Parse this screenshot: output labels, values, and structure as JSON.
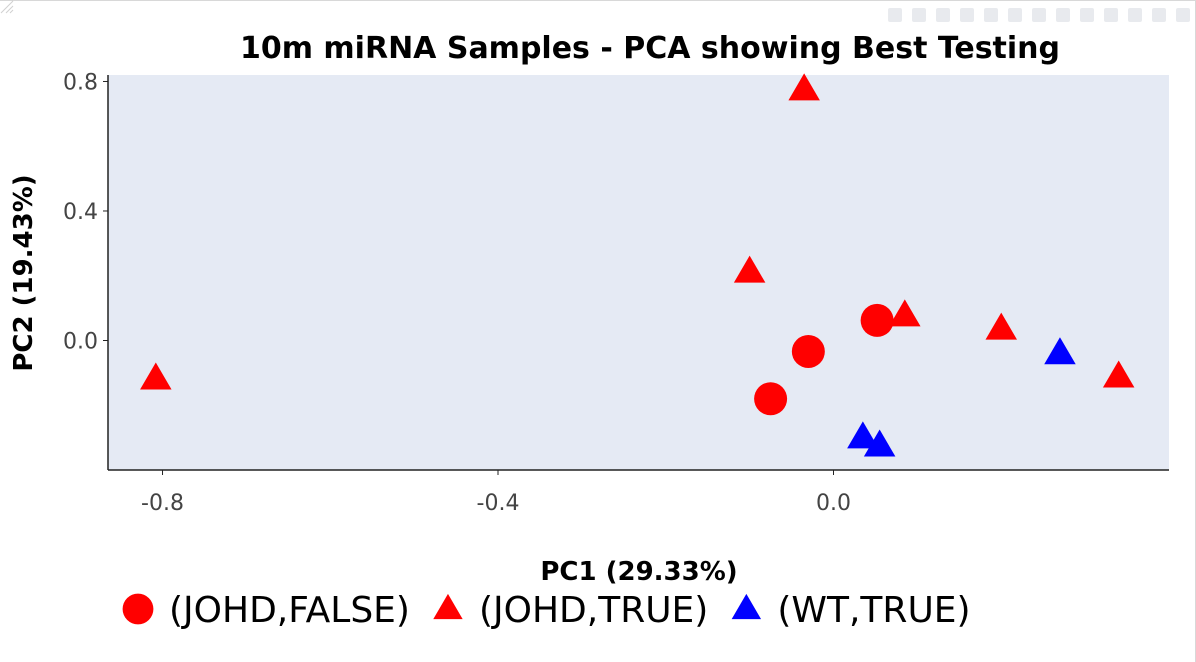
{
  "chart_data": {
    "type": "scatter",
    "title": "10m miRNA Samples - PCA showing Best Testing",
    "xlabel": "PC1 (29.33%)",
    "ylabel": "PC2 (19.43%)",
    "xlim": [
      -0.865,
      0.4
    ],
    "ylim": [
      -0.4,
      0.82
    ],
    "xticks": [
      -0.8,
      -0.4,
      0.0
    ],
    "xtick_labels": [
      "-0.8",
      "-0.4",
      "0.0"
    ],
    "yticks": [
      0.8,
      0.4,
      0.0
    ],
    "ytick_labels": [
      "0.8",
      "0.4",
      "0.0"
    ],
    "background": "#e5eaf4",
    "legend_position": "bottom",
    "series": [
      {
        "name": "(JOHD,FALSE)",
        "marker": "circle",
        "color": "#ff0000",
        "x": [
          0.052,
          -0.03,
          -0.075
        ],
        "y": [
          0.062,
          -0.034,
          -0.18
        ]
      },
      {
        "name": "(JOHD,TRUE)",
        "marker": "triangle-up",
        "color": "#ff0000",
        "x": [
          -0.035,
          -0.1,
          0.085,
          0.2,
          0.34,
          -0.808
        ],
        "y": [
          0.775,
          0.212,
          0.077,
          0.036,
          -0.112,
          -0.118
        ]
      },
      {
        "name": "(WT,TRUE)",
        "marker": "triangle-up",
        "color": "#0000ff",
        "x": [
          0.27,
          0.035,
          0.055
        ],
        "y": [
          -0.04,
          -0.3,
          -0.325
        ]
      }
    ]
  },
  "modebar": {
    "icons": [
      "camera-icon",
      "zoom-icon",
      "pan-icon",
      "box-select-icon",
      "lasso-select-icon",
      "zoom-in-icon",
      "zoom-out-icon",
      "autoscale-icon",
      "reset-axes-icon",
      "spike-lines-icon",
      "hover-closest-icon",
      "hover-compare-icon",
      "plotly-logo-icon"
    ]
  }
}
